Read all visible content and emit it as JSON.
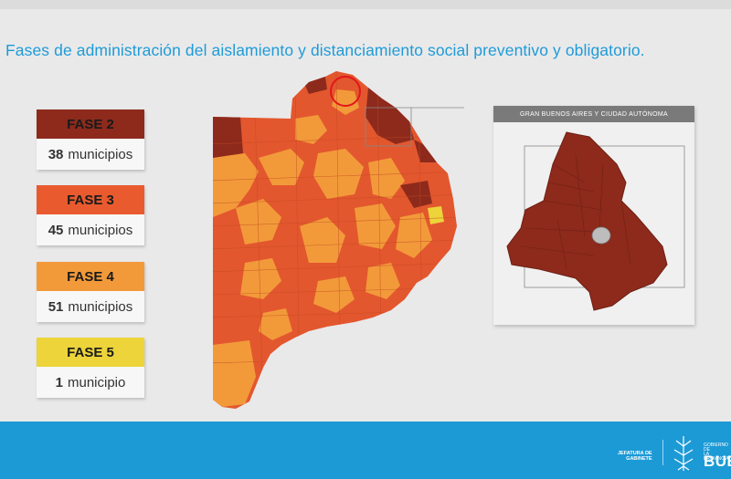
{
  "title": "Fases de administración del aislamiento y distanciamiento social preventivo y obligatorio.",
  "legend": [
    {
      "phase": "FASE 2",
      "count": "38",
      "unit": "municipios",
      "color": "#8d2a1c",
      "text_color": "#1a1a1a"
    },
    {
      "phase": "FASE 3",
      "count": "45",
      "unit": "municipios",
      "color": "#ea5a2f",
      "text_color": "#1a1a1a"
    },
    {
      "phase": "FASE 4",
      "count": "51",
      "unit": "municipios",
      "color": "#f29a3a",
      "text_color": "#1a1a1a"
    },
    {
      "phase": "FASE 5",
      "count": "1",
      "unit": "municipio",
      "color": "#ecd43a",
      "text_color": "#1a1a1a"
    }
  ],
  "inset": {
    "header": "GRAN BUENOS AIRES Y CIUDAD AUTÓNOMA"
  },
  "colors": {
    "phase2": "#8d2a1c",
    "phase3": "#e3572e",
    "phase4": "#f29a3a",
    "phase5": "#ecd43a",
    "highlight_circle": "#e0161c",
    "footer": "#1c9ad6",
    "title": "#1f9bd7"
  },
  "footer": {
    "jefatura_line1": "JEFATURA DE",
    "jefatura_line2": "GABINETE",
    "gob_line1": "GOBIERNO DE",
    "gob_line2": "LA PROVINCIA",
    "brand": "BUEN"
  }
}
